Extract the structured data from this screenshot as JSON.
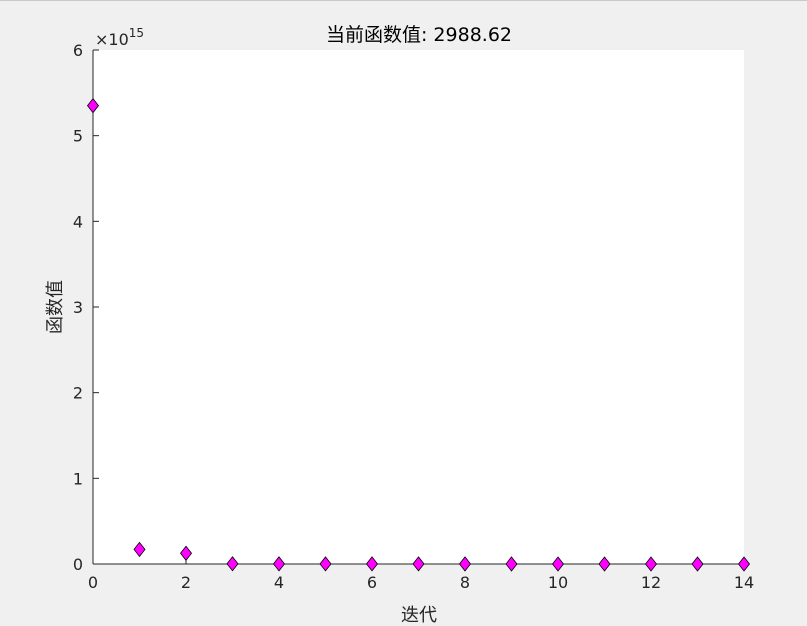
{
  "chart_data": {
    "type": "scatter",
    "title": "当前函数值: 2988.62",
    "xlabel": "迭代",
    "ylabel": "函数值",
    "y_exponent_label": "×10",
    "y_exponent_power": "15",
    "y_scale_factor": 1000000000000000.0,
    "xlim": [
      0,
      14
    ],
    "ylim": [
      0,
      6000000000000000.0
    ],
    "x_ticks": [
      0,
      2,
      4,
      6,
      8,
      10,
      12,
      14
    ],
    "x_tick_labels": [
      "0",
      "2",
      "4",
      "6",
      "8",
      "10",
      "12",
      "14"
    ],
    "y_ticks": [
      0,
      1000000000000000.0,
      2000000000000000.0,
      3000000000000000.0,
      4000000000000000.0,
      5000000000000000.0,
      6000000000000000.0
    ],
    "y_tick_labels": [
      "0",
      "1",
      "2",
      "3",
      "4",
      "5",
      "6"
    ],
    "grid": false,
    "marker": "diamond",
    "series": [
      {
        "x": [
          0,
          1,
          2,
          3,
          4,
          5,
          6,
          7,
          8,
          9,
          10,
          11,
          12,
          13,
          14
        ],
        "y": [
          5350000000000000.0,
          170000000000000.0,
          125000000000000.0,
          3000000000000.0,
          2000000000000.0,
          1500000000000.0,
          1000000000000.0,
          1000000000000.0,
          800000000000.0,
          500000000000.0,
          300000000000.0,
          200000000000.0,
          100000000000.0,
          50000000000.0,
          2988.62
        ],
        "color": "#ff00ff",
        "edge_color": "#000000"
      }
    ]
  }
}
